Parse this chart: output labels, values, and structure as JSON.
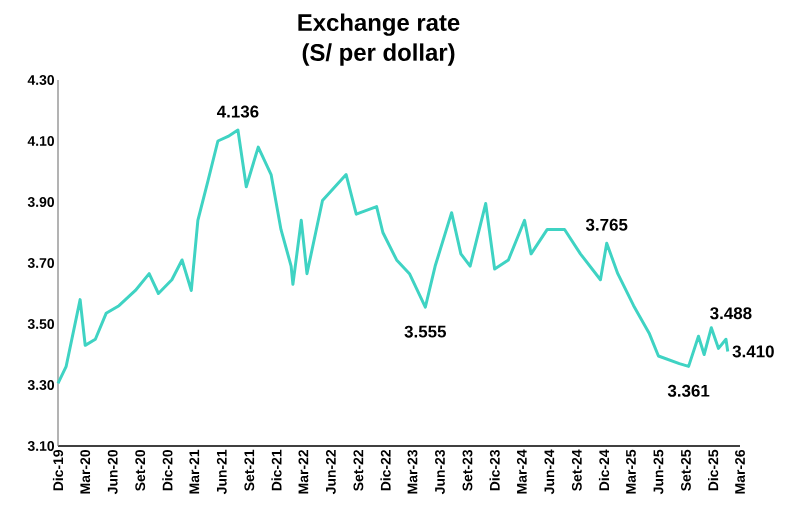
{
  "chart_data": {
    "type": "line",
    "title": "Exchange rate",
    "subtitle": "(S/ per dollar)",
    "x": [
      "2019-12-01",
      "2019-12-28",
      "2020-02-13",
      "2020-03-01",
      "2020-04-04",
      "2020-05-10",
      "2020-06-22",
      "2020-08-16",
      "2020-10-01",
      "2020-11-01",
      "2020-12-16",
      "2021-01-19",
      "2021-02-19",
      "2021-03-13",
      "2021-04-16",
      "2021-05-19",
      "2021-06-22",
      "2021-07-25",
      "2021-08-22",
      "2021-10-01",
      "2021-11-13",
      "2021-12-16",
      "2022-01-19",
      "2022-01-25",
      "2022-02-22",
      "2022-03-13",
      "2022-05-04",
      "2022-07-22",
      "2022-08-25",
      "2022-11-01",
      "2022-11-22",
      "2023-01-07",
      "2023-02-19",
      "2023-04-13",
      "2023-05-16",
      "2023-07-10",
      "2023-08-10",
      "2023-09-10",
      "2023-11-01",
      "2023-12-01",
      "2024-01-16",
      "2024-03-10",
      "2024-04-01",
      "2024-05-25",
      "2024-07-22",
      "2024-09-13",
      "2024-11-19",
      "2024-12-10",
      "2025-01-16",
      "2025-03-10",
      "2025-05-01",
      "2025-06-01",
      "2025-08-10",
      "2025-09-10",
      "2025-10-13",
      "2025-11-01",
      "2025-11-25",
      "2025-12-19",
      "2026-01-13",
      "2026-01-19"
    ],
    "series": [
      {
        "color": "#3fd3c3",
        "values": [
          3.305,
          3.36,
          3.58,
          3.43,
          3.45,
          3.535,
          3.56,
          3.61,
          3.665,
          3.6,
          3.645,
          3.71,
          3.61,
          3.84,
          3.97,
          4.1,
          4.115,
          4.136,
          3.95,
          4.08,
          3.99,
          3.81,
          3.69,
          3.63,
          3.84,
          3.665,
          3.905,
          3.99,
          3.86,
          3.885,
          3.8,
          3.71,
          3.665,
          3.555,
          3.69,
          3.865,
          3.73,
          3.69,
          3.895,
          3.68,
          3.71,
          3.84,
          3.73,
          3.81,
          3.81,
          3.73,
          3.645,
          3.765,
          3.665,
          3.56,
          3.47,
          3.395,
          3.37,
          3.361,
          3.46,
          3.4,
          3.488,
          3.42,
          3.45,
          3.41
        ]
      }
    ],
    "annotations": [
      {
        "text": "4.136",
        "x": "2021-07-25",
        "y": 4.136
      },
      {
        "text": "3.555",
        "x": "2023-04-13",
        "y": 3.555
      },
      {
        "text": "3.765",
        "x": "2024-12-10",
        "y": 3.765
      },
      {
        "text": "3.361",
        "x": "2025-09-10",
        "y": 3.361
      },
      {
        "text": "3.488",
        "x": "2025-11-25",
        "y": 3.488
      },
      {
        "text": "3.410",
        "x": "2026-01-19",
        "y": 3.41
      }
    ],
    "ylim": [
      3.1,
      4.3
    ],
    "yticks": [
      {
        "value": 3.1,
        "label": "3.10"
      },
      {
        "value": 3.3,
        "label": "3.30"
      },
      {
        "value": 3.5,
        "label": "3.50"
      },
      {
        "value": 3.7,
        "label": "3.70"
      },
      {
        "value": 3.9,
        "label": "3.90"
      },
      {
        "value": 4.1,
        "label": "4.10"
      },
      {
        "value": 4.3,
        "label": "4.30"
      }
    ],
    "xlim": [
      "2019-12",
      "2026-03"
    ],
    "xticks": [
      {
        "value": "2019-12",
        "label": "Dic-19"
      },
      {
        "value": "2020-03",
        "label": "Mar-20"
      },
      {
        "value": "2020-06",
        "label": "Jun-20"
      },
      {
        "value": "2020-09",
        "label": "Set-20"
      },
      {
        "value": "2020-12",
        "label": "Dic-20"
      },
      {
        "value": "2021-03",
        "label": "Mar-21"
      },
      {
        "value": "2021-06",
        "label": "Jun-21"
      },
      {
        "value": "2021-09",
        "label": "Set-21"
      },
      {
        "value": "2021-12",
        "label": "Dic-21"
      },
      {
        "value": "2022-03",
        "label": "Mar-22"
      },
      {
        "value": "2022-06",
        "label": "Jun-22"
      },
      {
        "value": "2022-09",
        "label": "Set-22"
      },
      {
        "value": "2022-12",
        "label": "Dic-22"
      },
      {
        "value": "2023-03",
        "label": "Mar-23"
      },
      {
        "value": "2023-06",
        "label": "Jun-23"
      },
      {
        "value": "2023-09",
        "label": "Set-23"
      },
      {
        "value": "2023-12",
        "label": "Dic-23"
      },
      {
        "value": "2024-03",
        "label": "Mar-24"
      },
      {
        "value": "2024-06",
        "label": "Jun-24"
      },
      {
        "value": "2024-09",
        "label": "Set-24"
      },
      {
        "value": "2024-12",
        "label": "Dic-24"
      },
      {
        "value": "2025-03",
        "label": "Mar-25"
      },
      {
        "value": "2025-06",
        "label": "Jun-25"
      },
      {
        "value": "2025-09",
        "label": "Set-25"
      },
      {
        "value": "2025-12",
        "label": "Dic-25"
      },
      {
        "value": "2026-03",
        "label": "Mar-26"
      }
    ],
    "grid": false,
    "marker": "none",
    "line_style": "solid"
  }
}
